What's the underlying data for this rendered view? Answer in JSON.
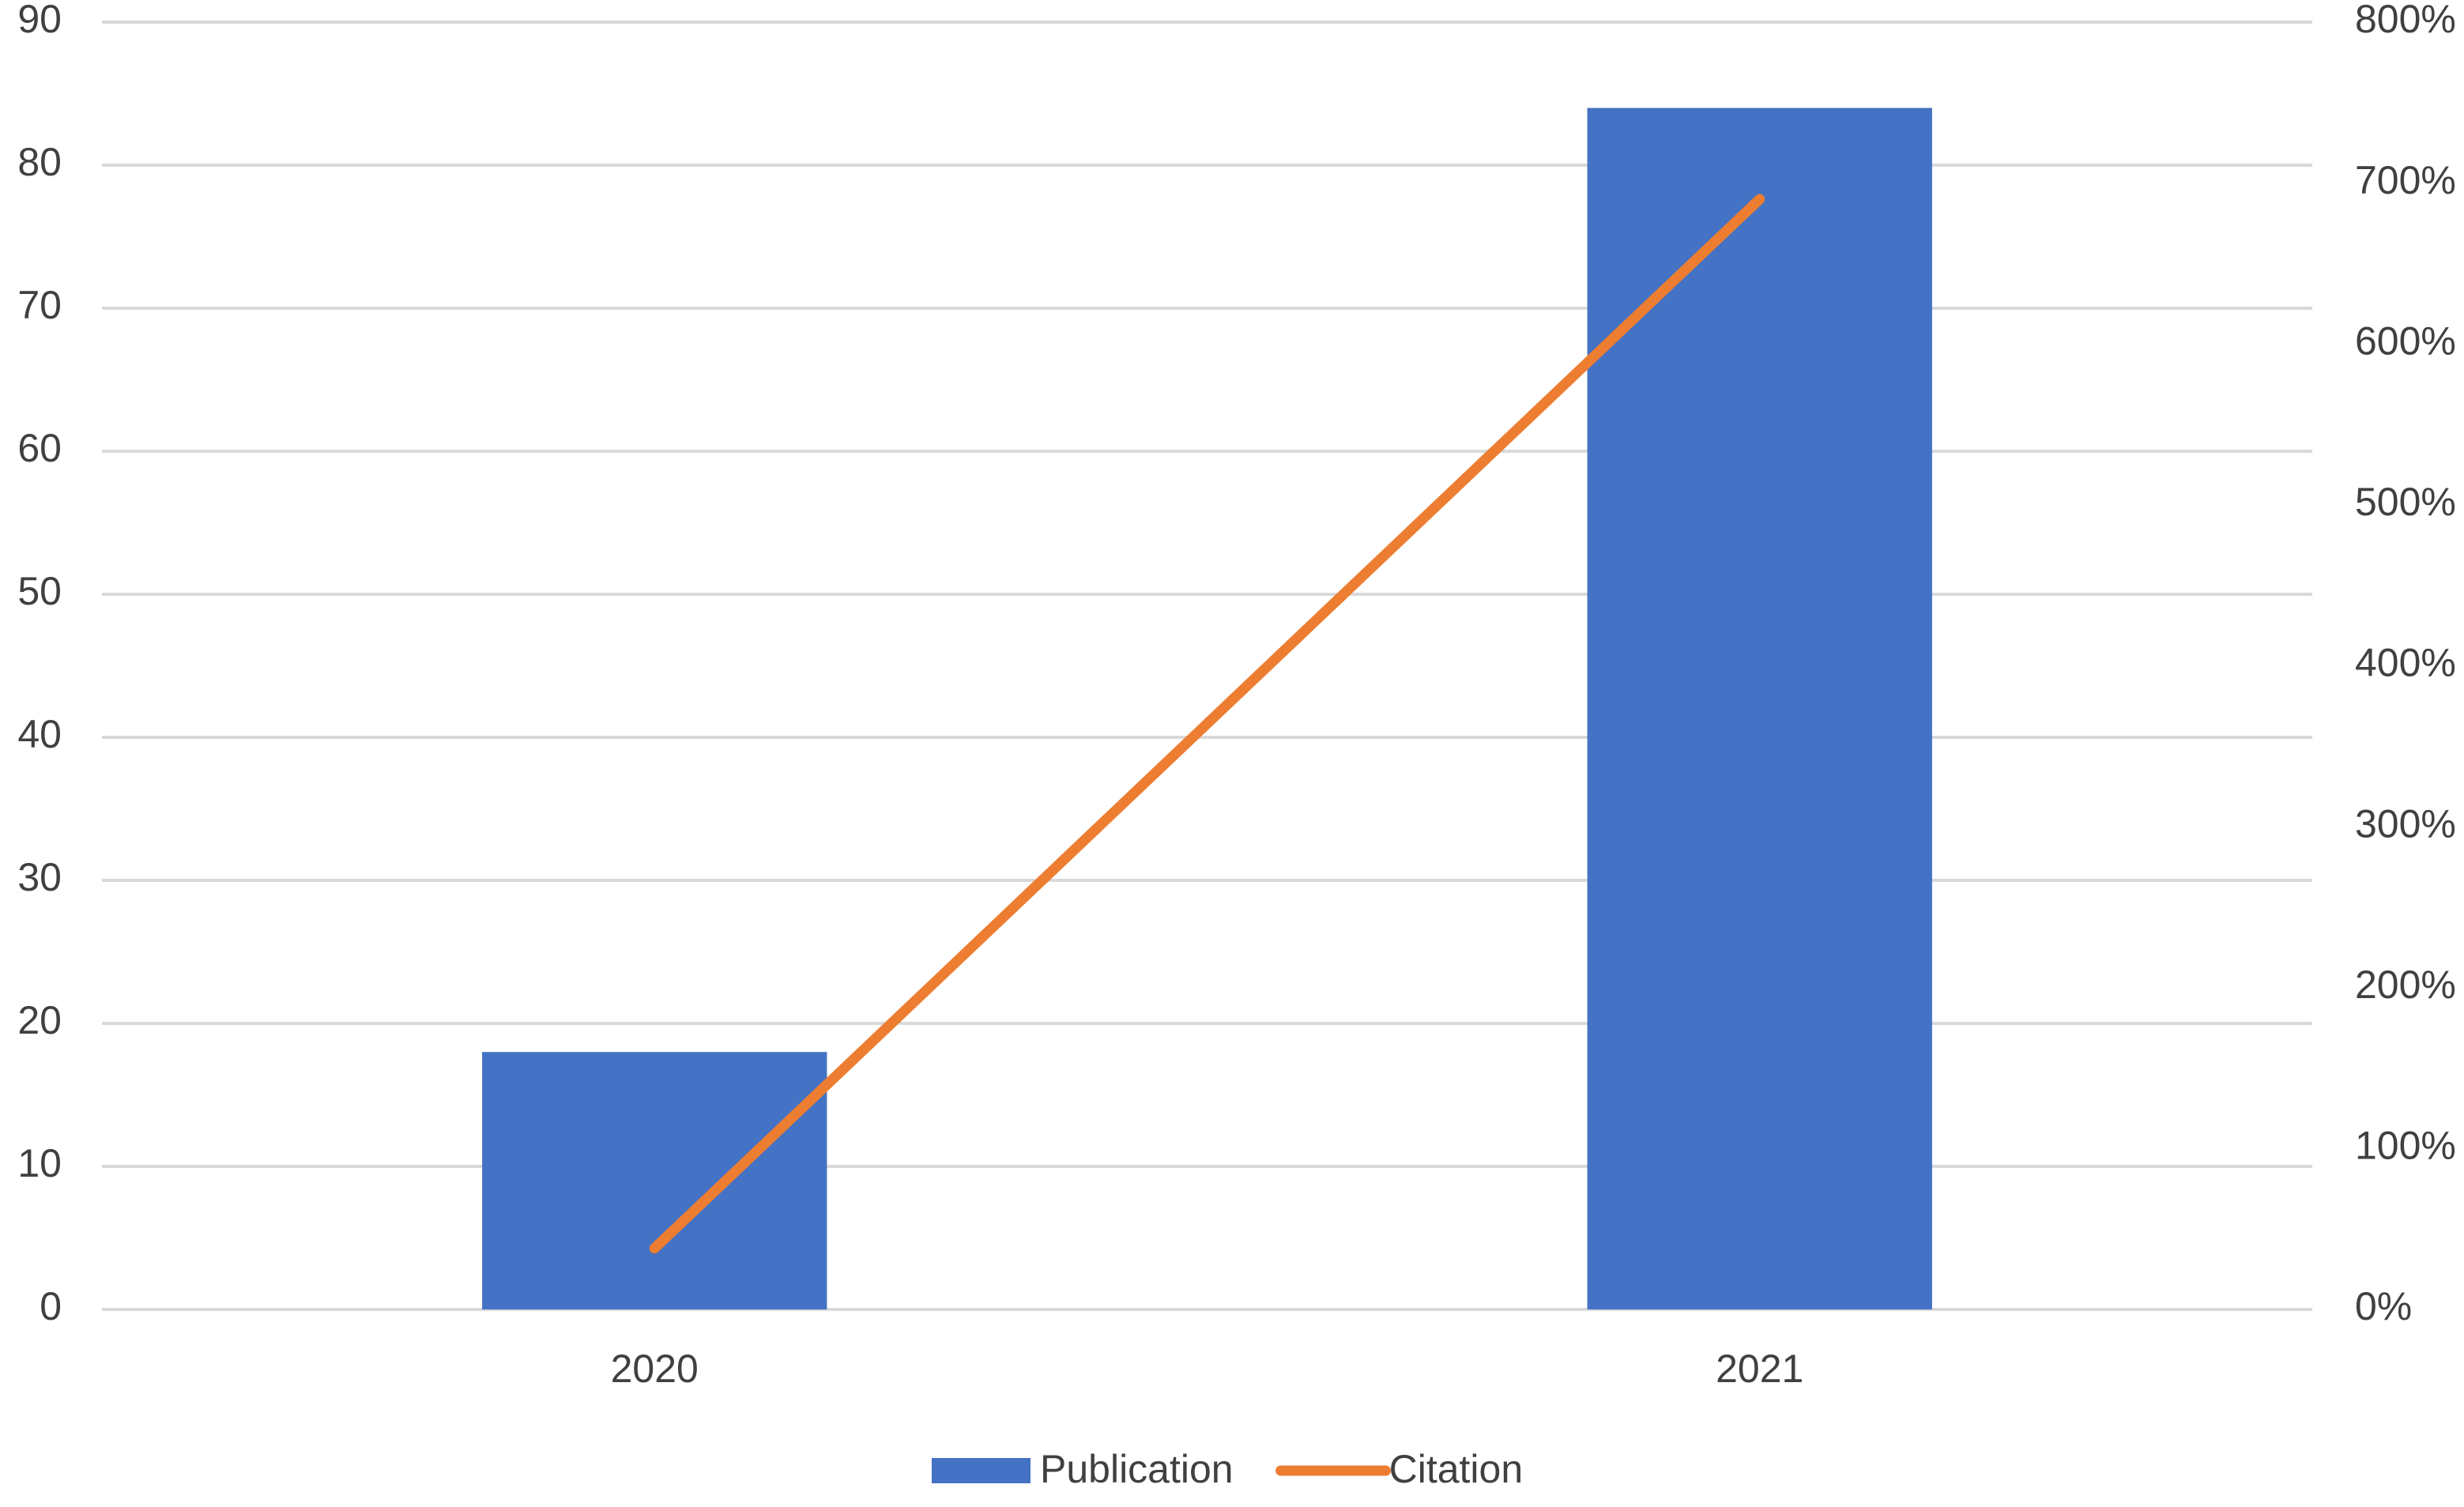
{
  "chart_data": {
    "type": "bar",
    "categories": [
      "2020",
      "2021"
    ],
    "series": [
      {
        "name": "Publication",
        "type": "bar",
        "color": "#4472c4",
        "values": [
          18,
          84
        ]
      },
      {
        "name": "Citation",
        "type": "line",
        "axis": "y2",
        "color": "#ed7d31",
        "values": [
          38,
          690
        ]
      }
    ],
    "ylim": [
      0,
      90
    ],
    "yticks": [
      0,
      10,
      20,
      30,
      40,
      50,
      60,
      70,
      80,
      90
    ],
    "y2lim": [
      0,
      800
    ],
    "y2ticks": [
      {
        "value": 0,
        "label": "0%"
      },
      {
        "value": 100,
        "label": "100%"
      },
      {
        "value": 200,
        "label": "200%"
      },
      {
        "value": 300,
        "label": "300%"
      },
      {
        "value": 400,
        "label": "400%"
      },
      {
        "value": 500,
        "label": "500%"
      },
      {
        "value": 600,
        "label": "600%"
      },
      {
        "value": 700,
        "label": "700%"
      },
      {
        "value": 800,
        "label": "800%"
      }
    ],
    "grid": true,
    "legend": "bottom"
  }
}
